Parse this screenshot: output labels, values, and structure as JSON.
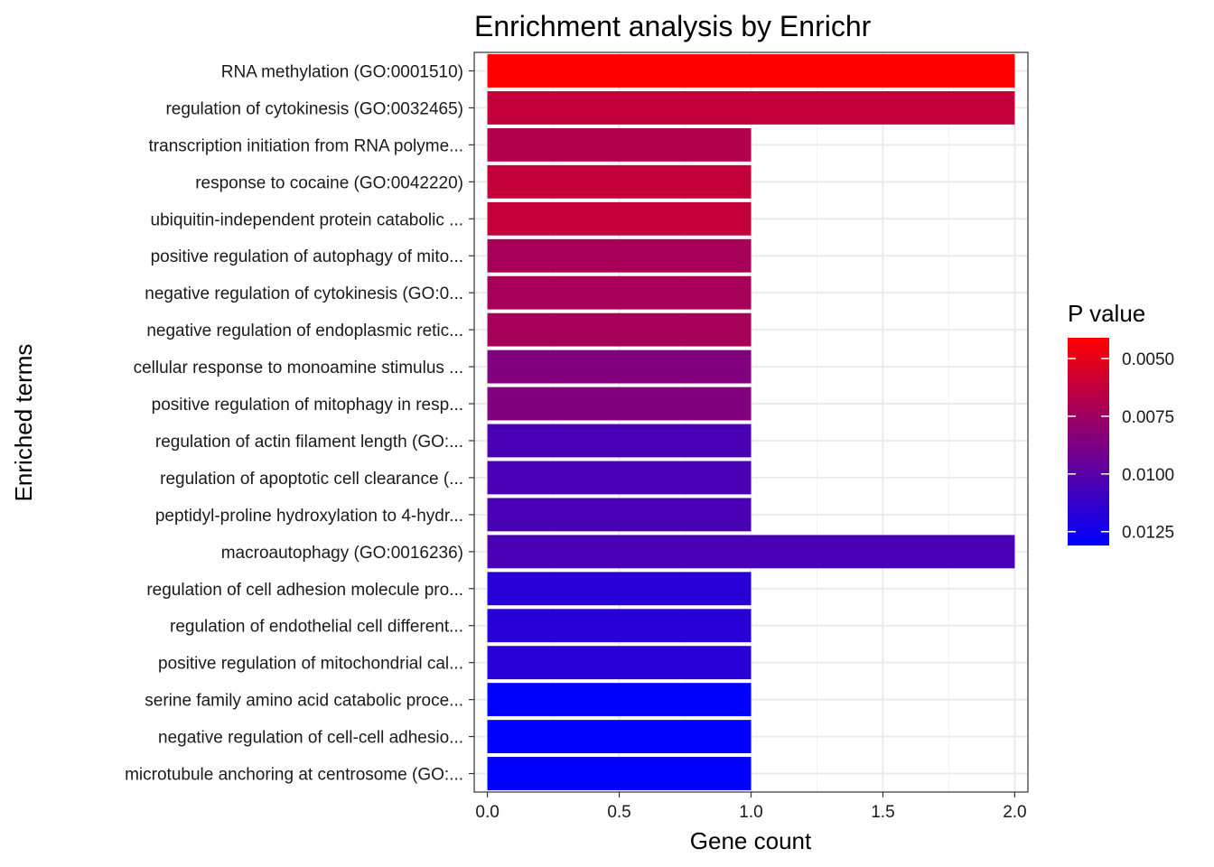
{
  "chart_data": {
    "type": "bar",
    "orientation": "horizontal",
    "title": "Enrichment analysis by Enrichr",
    "xlabel": "Gene count",
    "ylabel": "Enriched terms",
    "xlim": [
      -0.05,
      2.05
    ],
    "x_ticks": [
      0.0,
      0.5,
      1.0,
      1.5,
      2.0
    ],
    "x_tick_labels": [
      "0.0",
      "0.5",
      "1.0",
      "1.5",
      "2.0"
    ],
    "grid": true,
    "categories": [
      "RNA methylation (GO:0001510)",
      "regulation of cytokinesis (GO:0032465)",
      "transcription initiation from RNA polyme...",
      "response to cocaine (GO:0042220)",
      "ubiquitin-independent protein catabolic ...",
      "positive regulation of autophagy of mito...",
      "negative regulation of cytokinesis (GO:0...",
      "negative regulation of endoplasmic retic...",
      "cellular response to monoamine stimulus ...",
      "positive regulation of mitophagy in resp...",
      "regulation of actin filament length (GO:...",
      "regulation of apoptotic cell clearance (...",
      "peptidyl-proline hydroxylation to 4-hydr...",
      "macroautophagy (GO:0016236)",
      "regulation of cell adhesion molecule pro...",
      "regulation of endothelial cell different...",
      "positive regulation of mitochondrial cal...",
      "serine family amino acid catabolic proce...",
      "negative regulation of cell-cell adhesio...",
      "microtubule anchoring at centrosome (GO:..."
    ],
    "values": [
      2,
      2,
      1,
      1,
      1,
      1,
      1,
      1,
      1,
      1,
      1,
      1,
      1,
      2,
      1,
      1,
      1,
      1,
      1,
      1
    ],
    "p_values": [
      0.0041,
      0.0062,
      0.0068,
      0.0062,
      0.0062,
      0.0072,
      0.0072,
      0.0072,
      0.0085,
      0.0085,
      0.0105,
      0.0105,
      0.0105,
      0.0105,
      0.0117,
      0.0117,
      0.0117,
      0.0131,
      0.0131,
      0.0131
    ],
    "legend": {
      "title": "P value",
      "placement": "right",
      "range": [
        0.0041,
        0.0131
      ],
      "low_color": "#ff0000",
      "high_color": "#0000ff",
      "ticks": [
        0.005,
        0.0075,
        0.01,
        0.0125
      ],
      "tick_labels": [
        "0.0050",
        "0.0075",
        "0.0100",
        "0.0125"
      ]
    }
  }
}
